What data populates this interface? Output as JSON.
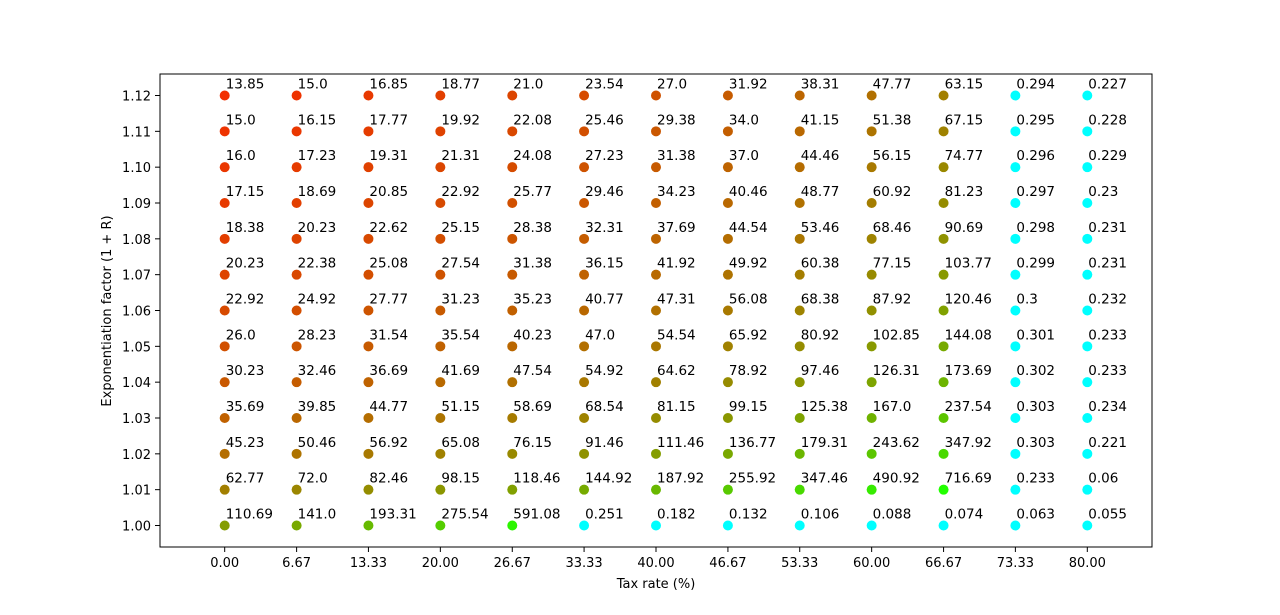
{
  "chart_data": {
    "type": "scatter",
    "xlabel": "Tax rate (%)",
    "ylabel": "Exponentiation factor (1 + R)",
    "x_ticks": [
      "0.00",
      "6.67",
      "13.33",
      "20.00",
      "26.67",
      "33.33",
      "40.00",
      "46.67",
      "53.33",
      "60.00",
      "66.67",
      "73.33",
      "80.00"
    ],
    "y_ticks": [
      "1.00",
      "1.01",
      "1.02",
      "1.03",
      "1.04",
      "1.05",
      "1.06",
      "1.07",
      "1.08",
      "1.09",
      "1.10",
      "1.11",
      "1.12"
    ],
    "x": [
      0.0,
      6.67,
      13.33,
      20.0,
      26.67,
      33.33,
      40.0,
      46.67,
      53.33,
      60.0,
      66.67,
      73.33,
      80.0
    ],
    "y": [
      1.12,
      1.11,
      1.1,
      1.09,
      1.08,
      1.07,
      1.06,
      1.05,
      1.04,
      1.03,
      1.02,
      1.01,
      1.0
    ],
    "xlim": [
      -6.0,
      86.0
    ],
    "ylim": [
      0.994,
      1.126
    ],
    "grid": false,
    "point_labels": [
      [
        "13.85",
        "15.0",
        "16.85",
        "18.77",
        "21.0",
        "23.54",
        "27.0",
        "31.92",
        "38.31",
        "47.77",
        "63.15",
        "0.294",
        "0.227"
      ],
      [
        "15.0",
        "16.15",
        "17.77",
        "19.92",
        "22.08",
        "25.46",
        "29.38",
        "34.0",
        "41.15",
        "51.38",
        "67.15",
        "0.295",
        "0.228"
      ],
      [
        "16.0",
        "17.23",
        "19.31",
        "21.31",
        "24.08",
        "27.23",
        "31.38",
        "37.0",
        "44.46",
        "56.15",
        "74.77",
        "0.296",
        "0.229"
      ],
      [
        "17.15",
        "18.69",
        "20.85",
        "22.92",
        "25.77",
        "29.46",
        "34.23",
        "40.46",
        "48.77",
        "60.92",
        "81.23",
        "0.297",
        "0.23"
      ],
      [
        "18.38",
        "20.23",
        "22.62",
        "25.15",
        "28.38",
        "32.31",
        "37.69",
        "44.54",
        "53.46",
        "68.46",
        "90.69",
        "0.298",
        "0.231"
      ],
      [
        "20.23",
        "22.38",
        "25.08",
        "27.54",
        "31.38",
        "36.15",
        "41.92",
        "49.92",
        "60.38",
        "77.15",
        "103.77",
        "0.299",
        "0.231"
      ],
      [
        "22.92",
        "24.92",
        "27.77",
        "31.23",
        "35.23",
        "40.77",
        "47.31",
        "56.08",
        "68.38",
        "87.92",
        "120.46",
        "0.3",
        "0.232"
      ],
      [
        "26.0",
        "28.23",
        "31.54",
        "35.54",
        "40.23",
        "47.0",
        "54.54",
        "65.92",
        "80.92",
        "102.85",
        "144.08",
        "0.301",
        "0.233"
      ],
      [
        "30.23",
        "32.46",
        "36.69",
        "41.69",
        "47.54",
        "54.92",
        "64.62",
        "78.92",
        "97.46",
        "126.31",
        "173.69",
        "0.302",
        "0.233"
      ],
      [
        "35.69",
        "39.85",
        "44.77",
        "51.15",
        "58.69",
        "68.54",
        "81.15",
        "99.15",
        "125.38",
        "167.0",
        "237.54",
        "0.303",
        "0.234"
      ],
      [
        "45.23",
        "50.46",
        "56.92",
        "65.08",
        "76.15",
        "91.46",
        "111.46",
        "136.77",
        "179.31",
        "243.62",
        "347.92",
        "0.303",
        "0.221"
      ],
      [
        "62.77",
        "72.0",
        "82.46",
        "98.15",
        "118.46",
        "144.92",
        "187.92",
        "255.92",
        "347.46",
        "490.92",
        "716.69",
        "0.233",
        "0.06"
      ],
      [
        "110.69",
        "141.0",
        "193.31",
        "275.54",
        "591.08",
        "0.251",
        "0.182",
        "0.132",
        "0.106",
        "0.088",
        "0.074",
        "0.063",
        "0.055"
      ]
    ],
    "colors": {
      "cyan": "#00ffff",
      "red": "#f22f00",
      "green_max": "#22ff00"
    }
  }
}
